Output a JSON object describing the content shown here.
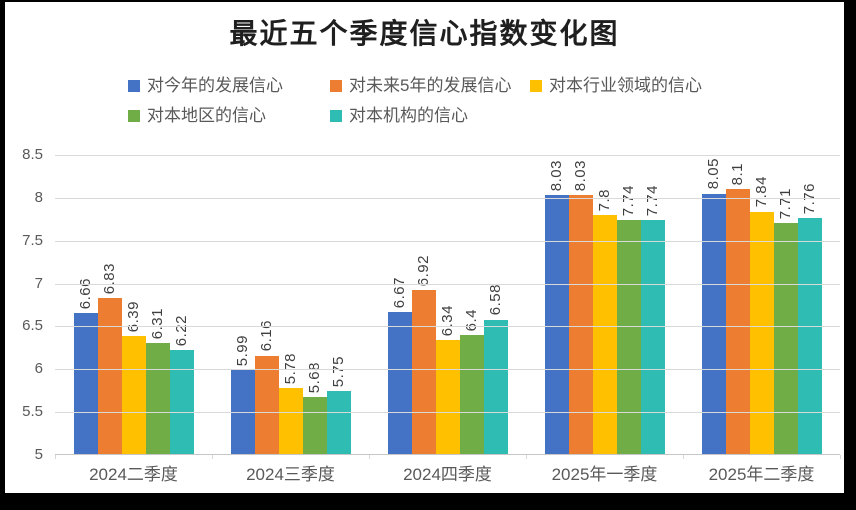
{
  "title": "最近五个季度信心指数变化图",
  "legend": {
    "items": [
      {
        "label": "对今年的发展信心",
        "color": "#4472C4"
      },
      {
        "label": "对未来5年的发展信心",
        "color": "#ED7D31"
      },
      {
        "label": "对本行业领域的信心",
        "color": "#FFC000"
      },
      {
        "label": "对本地区的信心",
        "color": "#70AD47"
      },
      {
        "label": "对本机构的信心",
        "color": "#2FBDB3"
      }
    ]
  },
  "chart_data": {
    "type": "bar",
    "title": "最近五个季度信心指数变化图",
    "categories": [
      "2024二季度",
      "2024三季度",
      "2024四季度",
      "2025年一季度",
      "2025年二季度"
    ],
    "series": [
      {
        "name": "对今年的发展信心",
        "color": "#4472C4",
        "values": [
          6.66,
          5.99,
          6.67,
          8.03,
          8.05
        ]
      },
      {
        "name": "对未来5年的发展信心",
        "color": "#ED7D31",
        "values": [
          6.83,
          6.16,
          6.92,
          8.03,
          8.1
        ]
      },
      {
        "name": "对本行业领域的信心",
        "color": "#FFC000",
        "values": [
          6.39,
          5.78,
          6.34,
          7.8,
          7.84
        ]
      },
      {
        "name": "对本地区的信心",
        "color": "#70AD47",
        "values": [
          6.31,
          5.68,
          6.4,
          7.74,
          7.71
        ]
      },
      {
        "name": "对本机构的信心",
        "color": "#2FBDB3",
        "values": [
          6.22,
          5.75,
          6.58,
          7.74,
          7.76
        ]
      }
    ],
    "xlabel": "",
    "ylabel": "",
    "ylim": [
      5,
      8.5
    ],
    "yticks": [
      "8.5",
      "8",
      "7.5",
      "7",
      "6.5",
      "6",
      "5.5",
      "5"
    ],
    "grid": true,
    "legend_position": "top",
    "data_labels": "rotated 90° above each bar",
    "gridline_color": "#D9D9D9"
  }
}
